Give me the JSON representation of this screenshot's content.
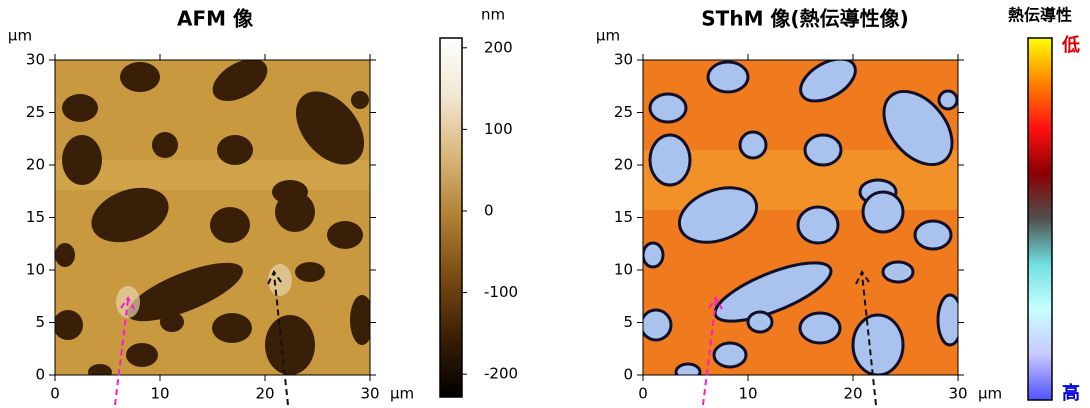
{
  "chart_data": [
    {
      "type": "image",
      "title": "AFM 像",
      "x_label": "μm",
      "y_label": "μm",
      "xlim": [
        0,
        30
      ],
      "ylim": [
        0,
        30
      ],
      "xticks": [
        0,
        10,
        20,
        30
      ],
      "yticks": [
        0,
        5,
        10,
        15,
        20,
        25,
        30
      ],
      "background": "#c8993e",
      "blob_color": "#3a1f08",
      "colorbar": {
        "label": "nm",
        "lim": [
          -228,
          212
        ],
        "ticks": [
          -200,
          -100,
          0,
          100,
          200
        ],
        "colors": [
          "#000000",
          "#3a1f05",
          "#7a4a12",
          "#b07f32",
          "#d8b577",
          "#f2e6cf",
          "#ffffff"
        ]
      }
    },
    {
      "type": "image",
      "title": "SThM 像(熱伝導性像)",
      "x_label": "μm",
      "y_label": "μm",
      "xlim": [
        0,
        30
      ],
      "ylim": [
        0,
        30
      ],
      "xticks": [
        0,
        10,
        20,
        30
      ],
      "yticks": [
        0,
        5,
        10,
        15,
        20,
        25,
        30
      ],
      "background": "#f07a1e",
      "blob_color": "#a9c2ee",
      "colorbar": {
        "label": "熱伝導性",
        "top_label": "低",
        "bottom_label": "高",
        "colors": [
          "#5050ff",
          "#c8c8ff",
          "#c8ffff",
          "#70e0e0",
          "#505050",
          "#8a0000",
          "#ff1010",
          "#ff8000",
          "#ffff00"
        ]
      }
    }
  ]
}
